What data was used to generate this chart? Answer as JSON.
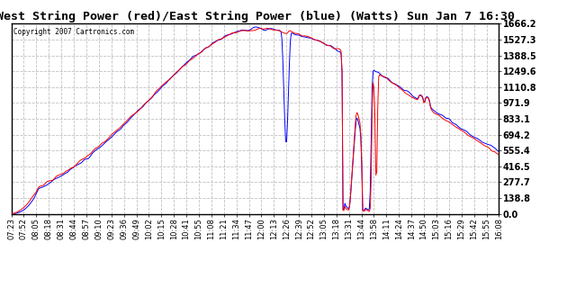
{
  "title": "West String Power (red)/East String Power (blue) (Watts) Sun Jan 7 16:30",
  "copyright": "Copyright 2007 Cartronics.com",
  "background_color": "#ffffff",
  "plot_bg_color": "#ffffff",
  "grid_color": "#c0c0c0",
  "yticks": [
    0.0,
    138.8,
    277.7,
    416.5,
    555.4,
    694.2,
    833.1,
    971.9,
    1110.8,
    1249.6,
    1388.5,
    1527.3,
    1666.2
  ],
  "ymax": 1666.2,
  "ymin": 0.0,
  "west_color": "#ff0000",
  "east_color": "#0000ff",
  "xtick_labels": [
    "07:23",
    "07:52",
    "08:05",
    "08:18",
    "08:31",
    "08:44",
    "08:57",
    "09:10",
    "09:23",
    "09:36",
    "09:49",
    "10:02",
    "10:15",
    "10:28",
    "10:41",
    "10:55",
    "11:08",
    "11:21",
    "11:34",
    "11:47",
    "12:00",
    "12:13",
    "12:26",
    "12:39",
    "12:52",
    "13:05",
    "13:18",
    "13:31",
    "13:44",
    "13:58",
    "14:11",
    "14:24",
    "14:37",
    "14:50",
    "15:03",
    "15:16",
    "15:29",
    "15:42",
    "15:55",
    "16:08"
  ],
  "n_points": 520
}
